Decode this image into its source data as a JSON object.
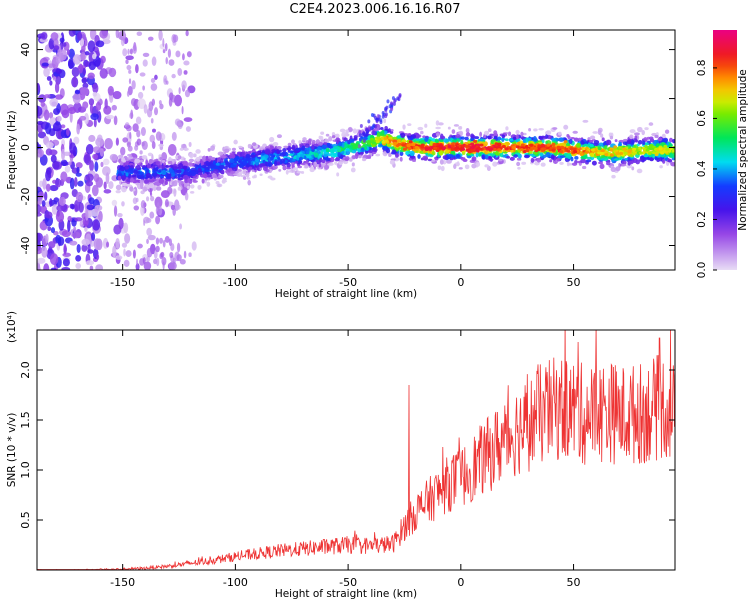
{
  "title": "C2E4.2023.006.16.16.R07",
  "chart_data": [
    {
      "type": "heatmap",
      "xlabel": "Height of straight line (km)",
      "ylabel": "Frequency (Hz)",
      "xlim": [
        -188,
        95
      ],
      "ylim": [
        -50,
        48
      ],
      "xticks": [
        -150,
        -100,
        -50,
        0,
        50
      ],
      "yticks": [
        -40,
        -20,
        0,
        20,
        40
      ],
      "colorbar": {
        "label": "Normalized spectral amplitude",
        "ticks": [
          0.0,
          0.2,
          0.4,
          0.6,
          0.8
        ],
        "range": [
          0,
          0.95
        ],
        "colormap": "rainbow (white/lavender → violet → blue → cyan → green → yellow → orange → red → magenta)"
      },
      "ridge_frequency_track": {
        "x": [
          -150,
          -140,
          -130,
          -120,
          -110,
          -100,
          -90,
          -80,
          -70,
          -60,
          -50,
          -40,
          -35,
          -30,
          -20,
          -10,
          0,
          10,
          20,
          30,
          40,
          50,
          60,
          70,
          80,
          90
        ],
        "y": [
          -10,
          -10,
          -10,
          -10,
          -8,
          -6,
          -5,
          -4,
          -3,
          -2,
          0,
          2,
          4,
          2,
          0,
          0,
          0,
          0,
          0,
          0,
          0,
          -1,
          -2,
          -2,
          -1,
          -1
        ],
        "amplitude": [
          0.35,
          0.35,
          0.35,
          0.3,
          0.35,
          0.35,
          0.4,
          0.4,
          0.45,
          0.5,
          0.55,
          0.6,
          0.75,
          0.8,
          0.85,
          0.9,
          0.9,
          0.9,
          0.85,
          0.85,
          0.85,
          0.85,
          0.75,
          0.75,
          0.7,
          0.7
        ]
      }
    },
    {
      "type": "line",
      "xlabel": "Height of straight line (km)",
      "ylabel": "SNR (10 * v/v)",
      "scale_note": "(x10⁴)",
      "xlim": [
        -188,
        95
      ],
      "ylim": [
        0,
        2.4
      ],
      "xticks": [
        -150,
        -100,
        -50,
        0,
        50
      ],
      "yticks": [
        0.5,
        1.0,
        1.5,
        2.0
      ],
      "color": "#ee3333",
      "series": [
        {
          "x": [
            -188,
            -170,
            -150,
            -140,
            -130,
            -120,
            -110,
            -100,
            -90,
            -80,
            -70,
            -60,
            -50,
            -40,
            -30,
            -25,
            -20,
            -15,
            -10,
            -5,
            0,
            5,
            10,
            15,
            20,
            25,
            30,
            35,
            40,
            45,
            50,
            55,
            60,
            65,
            70,
            75,
            80,
            85,
            90,
            95
          ],
          "y": [
            0.0,
            0.0,
            0.01,
            0.02,
            0.04,
            0.07,
            0.1,
            0.14,
            0.17,
            0.2,
            0.22,
            0.24,
            0.26,
            0.25,
            0.27,
            0.45,
            0.6,
            0.7,
            0.8,
            0.9,
            0.95,
            1.05,
            1.15,
            1.25,
            1.35,
            1.45,
            1.5,
            1.6,
            1.65,
            1.68,
            1.65,
            1.6,
            1.62,
            1.65,
            1.6,
            1.6,
            1.62,
            1.65,
            1.7,
            1.6
          ],
          "peaks": [
            {
              "x": -23,
              "y": 1.85
            },
            {
              "x": 93,
              "y": 2.4
            },
            {
              "x": 88,
              "y": 2.32
            },
            {
              "x": 52,
              "y": 2.28
            }
          ]
        }
      ]
    }
  ]
}
